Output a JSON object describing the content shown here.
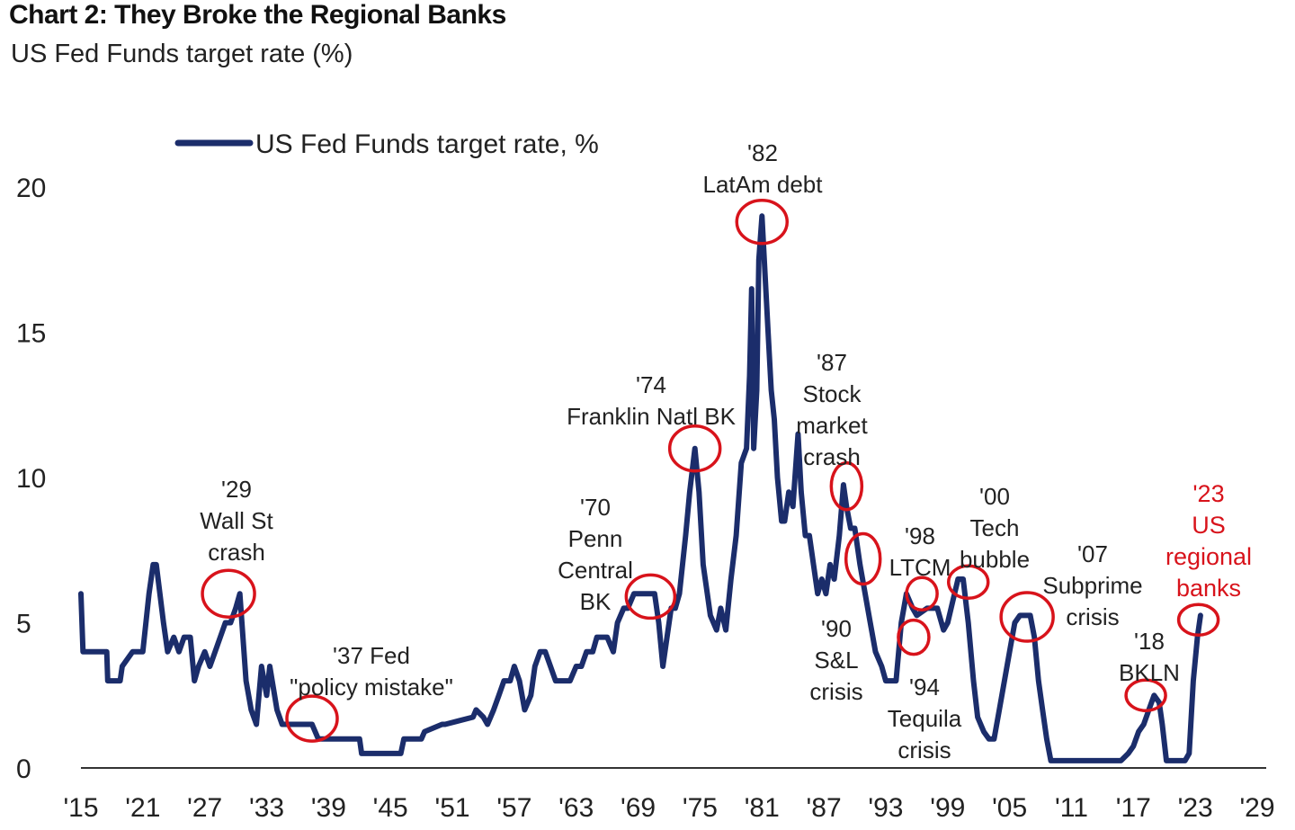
{
  "header": {
    "title": "Chart 2: They Broke the Regional Banks",
    "subtitle": "US Fed Funds target rate (%)"
  },
  "colors": {
    "line": "#1b2d6b",
    "circle": "#d8131b",
    "highlight_text": "#d8131b"
  },
  "chart_data": {
    "type": "line",
    "title": "Chart 2: They Broke the Regional Banks",
    "ylabel": "US Fed Funds target rate (%)",
    "xlim": [
      1915,
      2029
    ],
    "ylim": [
      0,
      20
    ],
    "x_ticks": [
      1915,
      1921,
      1927,
      1933,
      1939,
      1945,
      1951,
      1957,
      1963,
      1969,
      1975,
      1981,
      1987,
      1993,
      1999,
      2005,
      2011,
      2017,
      2023,
      2029
    ],
    "x_tick_labels": [
      "'15",
      "'21",
      "'27",
      "'33",
      "'39",
      "'45",
      "'51",
      "'57",
      "'63",
      "'69",
      "'75",
      "'81",
      "'87",
      "'93",
      "'99",
      "'05",
      "'11",
      "'17",
      "'23",
      "'29"
    ],
    "y_ticks": [
      0,
      5,
      10,
      15,
      20
    ],
    "y_tick_labels": [
      "0",
      "5",
      "10",
      "15",
      "20"
    ],
    "legend": {
      "label": "US Fed Funds target rate, %",
      "position": "top-left"
    },
    "series": [
      {
        "name": "US Fed Funds target rate, %",
        "x": [
          1915.0,
          1915.2,
          1916.0,
          1917.5,
          1917.6,
          1918.8,
          1919.0,
          1920.0,
          1920.2,
          1921.0,
          1921.6,
          1922.0,
          1922.3,
          1923.0,
          1923.4,
          1924.0,
          1924.5,
          1925.0,
          1925.6,
          1926.0,
          1926.4,
          1927.0,
          1927.5,
          1928.0,
          1928.5,
          1929.0,
          1929.5,
          1930.0,
          1930.4,
          1931.0,
          1931.5,
          1932.0,
          1932.5,
          1933.0,
          1933.3,
          1934.0,
          1934.5,
          1935.0,
          1937.0,
          1937.4,
          1938.0,
          1942.0,
          1942.2,
          1946.0,
          1946.3,
          1948.0,
          1948.3,
          1950.0,
          1950.3,
          1953.0,
          1953.3,
          1954.0,
          1954.4,
          1955.0,
          1955.5,
          1956.0,
          1956.6,
          1957.0,
          1957.5,
          1958.0,
          1958.6,
          1959.0,
          1959.5,
          1960.0,
          1960.5,
          1961.0,
          1961.5,
          1962.0,
          1962.4,
          1963.0,
          1963.5,
          1964.0,
          1964.6,
          1965.0,
          1965.6,
          1966.0,
          1966.6,
          1967.0,
          1967.6,
          1968.0,
          1968.6,
          1969.0,
          1969.6,
          1970.0,
          1970.6,
          1971.0,
          1971.4,
          1971.8,
          1972.2,
          1972.6,
          1973.0,
          1973.6,
          1974.0,
          1974.5,
          1974.9,
          1975.3,
          1975.7,
          1976.0,
          1976.6,
          1977.0,
          1977.5,
          1978.0,
          1978.5,
          1979.0,
          1979.5,
          1979.8,
          1980.0,
          1980.2,
          1980.5,
          1980.7,
          1981.0,
          1981.3,
          1981.6,
          1981.9,
          1982.2,
          1982.5,
          1982.9,
          1983.2,
          1983.6,
          1984.0,
          1984.5,
          1984.8,
          1985.2,
          1985.6,
          1986.0,
          1986.4,
          1986.8,
          1987.2,
          1987.6,
          1988.0,
          1988.5,
          1988.9,
          1989.2,
          1989.6,
          1990.0,
          1990.5,
          1991.0,
          1991.5,
          1992.0,
          1992.6,
          1993.0,
          1994.0,
          1994.5,
          1995.0,
          1995.6,
          1996.0,
          1997.0,
          1998.0,
          1998.6,
          1999.0,
          1999.5,
          2000.0,
          2000.5,
          2001.0,
          2001.5,
          2001.9,
          2002.5,
          2003.0,
          2003.5,
          2004.0,
          2004.5,
          2005.0,
          2005.5,
          2006.0,
          2006.5,
          2007.0,
          2007.4,
          2007.8,
          2008.2,
          2008.6,
          2009.0,
          2015.8,
          2016.5,
          2017.0,
          2017.5,
          2018.0,
          2018.5,
          2019.0,
          2019.5,
          2019.8,
          2020.2,
          2022.0,
          2022.4,
          2022.8,
          2023.2,
          2023.5
        ],
        "y": [
          6.0,
          4.0,
          4.0,
          4.0,
          3.0,
          3.0,
          3.5,
          4.0,
          4.0,
          4.0,
          6.0,
          7.0,
          7.0,
          5.0,
          4.0,
          4.5,
          4.0,
          4.5,
          4.5,
          3.0,
          3.5,
          4.0,
          3.5,
          4.0,
          4.5,
          5.0,
          5.0,
          5.5,
          6.0,
          3.0,
          2.0,
          1.5,
          3.5,
          2.5,
          3.5,
          2.0,
          1.5,
          1.5,
          1.5,
          1.5,
          1.0,
          1.0,
          0.5,
          0.5,
          1.0,
          1.0,
          1.25,
          1.5,
          1.5,
          1.75,
          2.0,
          1.75,
          1.5,
          2.0,
          2.5,
          3.0,
          3.0,
          3.5,
          3.0,
          2.0,
          2.5,
          3.5,
          4.0,
          4.0,
          3.5,
          3.0,
          3.0,
          3.0,
          3.0,
          3.5,
          3.5,
          4.0,
          4.0,
          4.5,
          4.5,
          4.5,
          4.0,
          5.0,
          5.5,
          5.5,
          6.0,
          6.0,
          6.0,
          6.0,
          6.0,
          5.0,
          3.5,
          4.5,
          5.5,
          5.5,
          6.0,
          8.0,
          9.5,
          11.0,
          9.5,
          7.0,
          6.0,
          5.25,
          4.75,
          5.5,
          4.75,
          6.5,
          8.0,
          10.5,
          11.0,
          13.5,
          16.5,
          11.0,
          13.0,
          17.5,
          19.0,
          17.0,
          15.0,
          13.0,
          12.0,
          10.0,
          8.5,
          8.5,
          9.5,
          9.0,
          11.5,
          9.5,
          8.0,
          8.0,
          7.0,
          6.0,
          6.5,
          6.0,
          7.0,
          6.5,
          8.0,
          9.75,
          9.0,
          8.25,
          8.25,
          7.0,
          6.0,
          5.0,
          4.0,
          3.5,
          3.0,
          3.0,
          5.0,
          6.0,
          5.5,
          5.25,
          5.5,
          5.5,
          4.75,
          5.0,
          5.75,
          6.5,
          6.5,
          5.0,
          3.0,
          1.75,
          1.25,
          1.0,
          1.0,
          2.0,
          3.0,
          4.0,
          5.0,
          5.25,
          5.25,
          5.25,
          4.5,
          3.0,
          2.0,
          1.0,
          0.25,
          0.25,
          0.5,
          0.75,
          1.25,
          1.5,
          2.0,
          2.5,
          2.25,
          1.5,
          0.25,
          0.25,
          0.5,
          3.0,
          4.5,
          5.25
        ]
      }
    ],
    "annotations": [
      {
        "id": "wall-st",
        "lines": [
          "'29",
          "Wall St",
          "crash"
        ],
        "circle_x": 1929.3,
        "circle_y": 6.0,
        "highlight": false
      },
      {
        "id": "fed-mistake",
        "lines": [
          "'37 Fed",
          "\"policy mistake\""
        ],
        "circle_x": 1937.4,
        "circle_y": 1.7,
        "highlight": false
      },
      {
        "id": "penn-central",
        "lines": [
          "'70",
          "Penn",
          "Central",
          "BK"
        ],
        "circle_x": 1970.2,
        "circle_y": 5.9,
        "highlight": false
      },
      {
        "id": "franklin",
        "lines": [
          "'74",
          "Franklin Natl BK"
        ],
        "circle_x": 1974.5,
        "circle_y": 11.0,
        "highlight": false
      },
      {
        "id": "latam",
        "lines": [
          "'82",
          "LatAm debt"
        ],
        "circle_x": 1981.0,
        "circle_y": 18.8,
        "highlight": false
      },
      {
        "id": "stock-crash",
        "lines": [
          "'87",
          "Stock",
          "market",
          "crash"
        ],
        "circle_x": 1989.2,
        "circle_y": 9.7,
        "highlight": false
      },
      {
        "id": "sl",
        "lines": [
          "'90",
          "S&L",
          "crisis"
        ],
        "circle_x": 1990.8,
        "circle_y": 7.2,
        "highlight": false
      },
      {
        "id": "ltcm",
        "lines": [
          "'98",
          "LTCM"
        ],
        "circle_x": 1996.5,
        "circle_y": 6.0,
        "highlight": false
      },
      {
        "id": "tequila",
        "lines": [
          "'94",
          "Tequila",
          "crisis"
        ],
        "circle_x": 1995.7,
        "circle_y": 4.5,
        "highlight": false
      },
      {
        "id": "tech",
        "lines": [
          "'00",
          "Tech",
          "bubble"
        ],
        "circle_x": 2001.0,
        "circle_y": 6.4,
        "highlight": false
      },
      {
        "id": "subprime",
        "lines": [
          "'07",
          "Subprime",
          "crisis"
        ],
        "circle_x": 2006.7,
        "circle_y": 5.2,
        "highlight": false
      },
      {
        "id": "bkln",
        "lines": [
          "'18",
          "BKLN"
        ],
        "circle_x": 2018.2,
        "circle_y": 2.5,
        "highlight": false
      },
      {
        "id": "regional",
        "lines": [
          "'23",
          "US",
          "regional",
          "banks"
        ],
        "circle_x": 2023.3,
        "circle_y": 5.1,
        "highlight": true
      }
    ]
  }
}
